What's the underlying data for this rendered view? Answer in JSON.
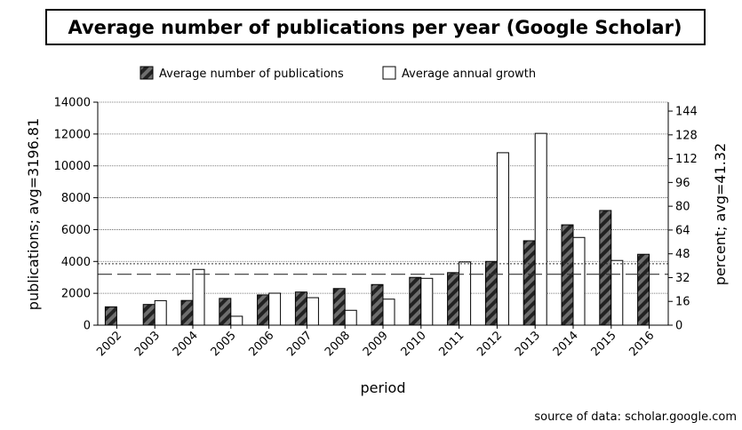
{
  "chart_data": {
    "type": "bar",
    "title": "Average number of publications per year (Google Scholar)",
    "xlabel": "period",
    "ylabel_left": "publications; avg=3196.81",
    "ylabel_right": "percent; avg=41.32",
    "source": "source of data: scholar.google.com",
    "categories": [
      "2002",
      "2003",
      "2004",
      "2005",
      "2006",
      "2007",
      "2008",
      "2009",
      "2010",
      "2011",
      "2012",
      "2013",
      "2014",
      "2015",
      "2016"
    ],
    "series": [
      {
        "name": "Average number of publications",
        "axis": "left",
        "values": [
          1150,
          1300,
          1550,
          1680,
          1900,
          2080,
          2300,
          2550,
          3000,
          3300,
          4000,
          5300,
          6300,
          7200,
          4450
        ]
      },
      {
        "name": "Average annual growth",
        "axis": "right",
        "values": [
          null,
          16.5,
          37.5,
          6,
          21.5,
          18.5,
          10,
          17.5,
          31.5,
          42.5,
          116,
          129,
          59,
          43.5,
          null
        ]
      }
    ],
    "ylim_left": [
      0,
      14000
    ],
    "ylim_right": [
      0,
      150
    ],
    "yticks_left": [
      0,
      2000,
      4000,
      6000,
      8000,
      10000,
      12000,
      14000
    ],
    "yticks_right": [
      0,
      16,
      32,
      48,
      64,
      80,
      96,
      112,
      128,
      144
    ],
    "reference_lines": {
      "avg_publications": 3196.81,
      "avg_growth_percent": 41.32
    },
    "grid": "horizontal",
    "legend_position": "top-center",
    "colors": {
      "publications_fill": "#6e6e6e",
      "publications_stripe": "#222222",
      "growth_fill": "#ffffff",
      "stroke": "#000000"
    }
  }
}
